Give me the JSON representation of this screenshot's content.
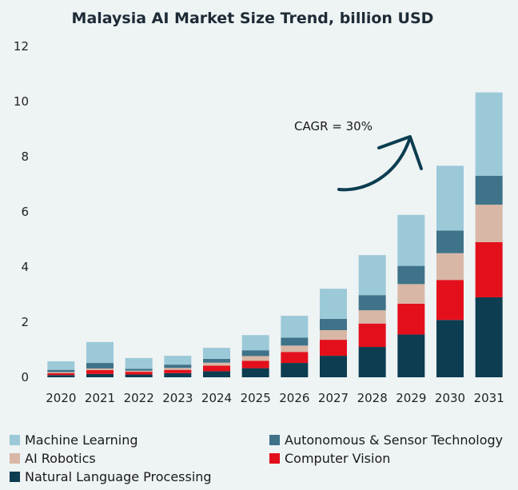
{
  "chart_data": {
    "type": "bar",
    "stacked": true,
    "title": "Malaysia AI Market Size Trend, billion USD",
    "xlabel": "",
    "ylabel": "",
    "ylim": [
      0,
      12
    ],
    "yticks": [
      0,
      2,
      4,
      6,
      8,
      10,
      12
    ],
    "grid": false,
    "legend_position": "bottom",
    "categories": [
      "2020",
      "2021",
      "2022",
      "2023",
      "2024",
      "2025",
      "2026",
      "2027",
      "2028",
      "2029",
      "2030",
      "2031"
    ],
    "series": [
      {
        "name": "Natural Language Processing",
        "color": "#0c3d50",
        "values": [
          0.08,
          0.12,
          0.1,
          0.15,
          0.22,
          0.33,
          0.52,
          0.78,
          1.1,
          1.55,
          2.08,
          2.9
        ]
      },
      {
        "name": "Computer Vision",
        "color": "#e3101c",
        "values": [
          0.07,
          0.14,
          0.1,
          0.12,
          0.2,
          0.27,
          0.4,
          0.58,
          0.85,
          1.12,
          1.45,
          2.0
        ]
      },
      {
        "name": "AI Robotics",
        "color": "#d8b7a6",
        "values": [
          0.04,
          0.06,
          0.04,
          0.07,
          0.11,
          0.17,
          0.23,
          0.35,
          0.48,
          0.71,
          0.97,
          1.36
        ]
      },
      {
        "name": "Autonomous & Sensor Technology",
        "color": "#3f7389",
        "values": [
          0.08,
          0.2,
          0.07,
          0.12,
          0.14,
          0.21,
          0.29,
          0.41,
          0.55,
          0.66,
          0.82,
          1.05
        ]
      },
      {
        "name": "Machine Learning",
        "color": "#9cc9d8",
        "values": [
          0.31,
          0.76,
          0.39,
          0.32,
          0.4,
          0.55,
          0.79,
          1.09,
          1.45,
          1.85,
          2.35,
          3.02
        ]
      }
    ],
    "annotation": {
      "text": "CAGR = 30%"
    }
  },
  "legend_order": [
    "Machine Learning",
    "Autonomous & Sensor Technology",
    "AI Robotics",
    "Computer Vision",
    "Natural Language Processing"
  ]
}
